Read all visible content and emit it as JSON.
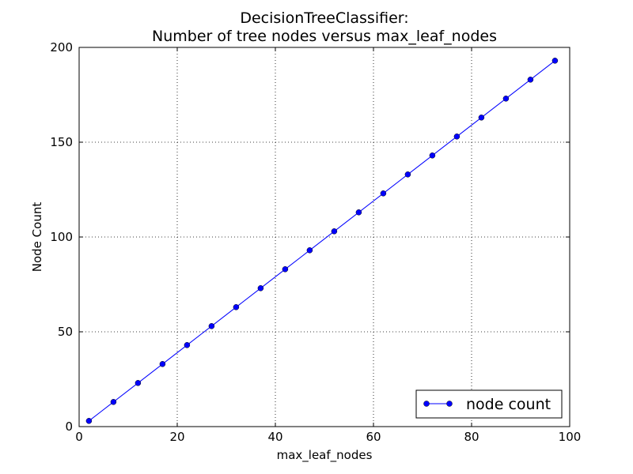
{
  "chart_data": {
    "type": "line",
    "title_lines": [
      "DecisionTreeClassifier:",
      "Number of tree nodes versus max_leaf_nodes"
    ],
    "xlabel": "max_leaf_nodes",
    "ylabel": "Node Count",
    "xlim": [
      0,
      100
    ],
    "ylim": [
      0,
      200
    ],
    "xticks": [
      0,
      20,
      40,
      60,
      80,
      100
    ],
    "yticks": [
      0,
      50,
      100,
      150,
      200
    ],
    "grid": true,
    "legend_position": "lower-right",
    "series": [
      {
        "name": "node count",
        "color": "#0000ff",
        "marker": "circle",
        "x": [
          2,
          7,
          12,
          17,
          22,
          27,
          32,
          37,
          42,
          47,
          52,
          57,
          62,
          67,
          72,
          77,
          82,
          87,
          92,
          97
        ],
        "y": [
          3,
          13,
          23,
          33,
          43,
          53,
          63,
          73,
          83,
          93,
          103,
          113,
          123,
          133,
          143,
          153,
          163,
          173,
          183,
          193
        ]
      }
    ]
  }
}
